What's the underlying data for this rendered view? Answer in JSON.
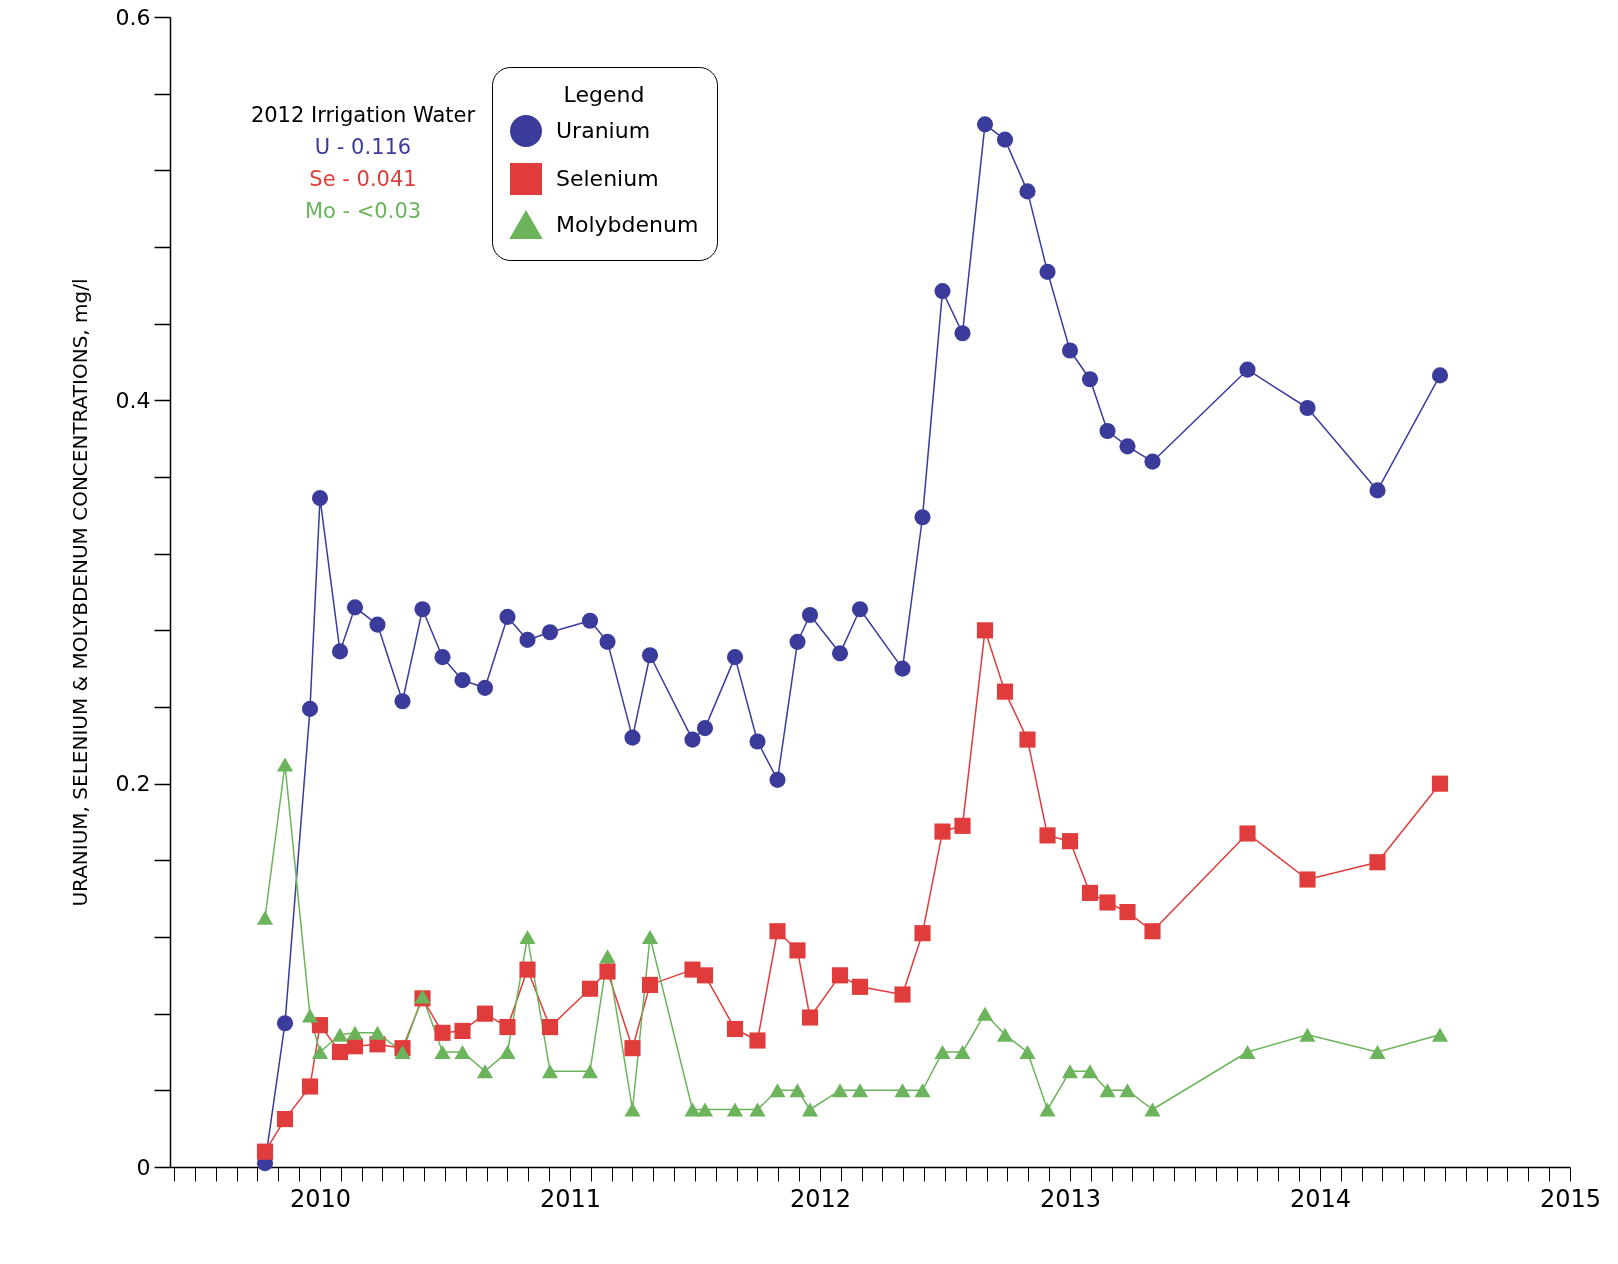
{
  "chart_data": {
    "type": "line",
    "ylabel": "URANIUM, SELENIUM & MOLYBDENUM CONCENTRATIONS, mg/l",
    "legend_title": "Legend",
    "legend": "top",
    "grid": false,
    "annotations": [
      "2012 Irrigation Water",
      "U - 0.116",
      "Se - 0.041",
      "Mo - <0.03"
    ],
    "x": [
      2009.78,
      2009.86,
      2009.96,
      2010.0,
      2010.08,
      2010.14,
      2010.23,
      2010.33,
      2010.41,
      2010.49,
      2010.57,
      2010.66,
      2010.75,
      2010.83,
      2010.92,
      2011.08,
      2011.15,
      2011.25,
      2011.32,
      2011.49,
      2011.54,
      2011.66,
      2011.75,
      2011.83,
      2011.91,
      2011.96,
      2012.08,
      2012.16,
      2012.33,
      2012.41,
      2012.49,
      2012.57,
      2012.66,
      2012.74,
      2012.83,
      2012.91,
      2013.0,
      2013.08,
      2013.15,
      2013.23,
      2013.33,
      2013.71,
      2013.95,
      2014.23,
      2014.48
    ],
    "series": [
      {
        "name": "Uranium",
        "color": "#3b3b9c",
        "marker": "circle",
        "values": [
          0.002,
          0.075,
          0.239,
          0.349,
          0.269,
          0.292,
          0.283,
          0.243,
          0.291,
          0.266,
          0.254,
          0.25,
          0.287,
          0.275,
          0.279,
          0.285,
          0.274,
          0.224,
          0.267,
          0.223,
          0.229,
          0.266,
          0.222,
          0.202,
          0.274,
          0.288,
          0.268,
          0.291,
          0.26,
          0.339,
          0.457,
          0.435,
          0.544,
          0.536,
          0.509,
          0.467,
          0.426,
          0.411,
          0.384,
          0.376,
          0.368,
          0.416,
          0.396,
          0.353,
          0.413
        ]
      },
      {
        "name": "Selenium",
        "color": "#e03c3c",
        "marker": "square",
        "values": [
          0.008,
          0.025,
          0.042,
          0.074,
          0.06,
          0.063,
          0.064,
          0.062,
          0.088,
          0.07,
          0.071,
          0.08,
          0.073,
          0.103,
          0.073,
          0.093,
          0.102,
          0.062,
          0.095,
          0.103,
          0.1,
          0.072,
          0.066,
          0.123,
          0.113,
          0.078,
          0.1,
          0.094,
          0.09,
          0.122,
          0.175,
          0.178,
          0.28,
          0.248,
          0.223,
          0.173,
          0.17,
          0.143,
          0.138,
          0.133,
          0.123,
          0.174,
          0.15,
          0.159,
          0.2
        ]
      },
      {
        "name": "Molybdenum",
        "color": "#6cb45c",
        "marker": "triangle",
        "values": [
          0.13,
          0.21,
          0.079,
          0.06,
          0.069,
          0.07,
          0.07,
          0.06,
          0.089,
          0.06,
          0.06,
          0.05,
          0.06,
          0.12,
          0.05,
          0.05,
          0.11,
          0.03,
          0.12,
          0.03,
          0.03,
          0.03,
          0.03,
          0.04,
          0.04,
          0.03,
          0.04,
          0.04,
          0.04,
          0.04,
          0.06,
          0.06,
          0.08,
          0.069,
          0.06,
          0.03,
          0.05,
          0.05,
          0.04,
          0.04,
          0.03,
          0.06,
          0.069,
          0.06,
          0.069
        ]
      }
    ],
    "xlim": [
      2009.4,
      2015
    ],
    "xticks": [
      {
        "value": 2009.417,
        "label": null
      },
      {
        "value": 2009.5,
        "label": null
      },
      {
        "value": 2009.583,
        "label": null
      },
      {
        "value": 2009.667,
        "label": null
      },
      {
        "value": 2009.75,
        "label": null
      },
      {
        "value": 2009.833,
        "label": null
      },
      {
        "value": 2009.917,
        "label": null
      },
      2010,
      {
        "value": 2010.083,
        "label": null
      },
      {
        "value": 2010.167,
        "label": null
      },
      {
        "value": 2010.25,
        "label": null
      },
      {
        "value": 2010.333,
        "label": null
      },
      {
        "value": 2010.417,
        "label": null
      },
      {
        "value": 2010.5,
        "label": null
      },
      {
        "value": 2010.583,
        "label": null
      },
      {
        "value": 2010.667,
        "label": null
      },
      {
        "value": 2010.75,
        "label": null
      },
      {
        "value": 2010.833,
        "label": null
      },
      {
        "value": 2010.917,
        "label": null
      },
      2011,
      {
        "value": 2011.083,
        "label": null
      },
      {
        "value": 2011.167,
        "label": null
      },
      {
        "value": 2011.25,
        "label": null
      },
      {
        "value": 2011.333,
        "label": null
      },
      {
        "value": 2011.417,
        "label": null
      },
      {
        "value": 2011.5,
        "label": null
      },
      {
        "value": 2011.583,
        "label": null
      },
      {
        "value": 2011.667,
        "label": null
      },
      {
        "value": 2011.75,
        "label": null
      },
      {
        "value": 2011.833,
        "label": null
      },
      {
        "value": 2011.917,
        "label": null
      },
      2012,
      {
        "value": 2012.083,
        "label": null
      },
      {
        "value": 2012.167,
        "label": null
      },
      {
        "value": 2012.25,
        "label": null
      },
      {
        "value": 2012.333,
        "label": null
      },
      {
        "value": 2012.417,
        "label": null
      },
      {
        "value": 2012.5,
        "label": null
      },
      {
        "value": 2012.583,
        "label": null
      },
      {
        "value": 2012.667,
        "label": null
      },
      {
        "value": 2012.75,
        "label": null
      },
      {
        "value": 2012.833,
        "label": null
      },
      {
        "value": 2012.917,
        "label": null
      },
      2013,
      {
        "value": 2013.083,
        "label": null
      },
      {
        "value": 2013.167,
        "label": null
      },
      {
        "value": 2013.25,
        "label": null
      },
      {
        "value": 2013.333,
        "label": null
      },
      {
        "value": 2013.417,
        "label": null
      },
      {
        "value": 2013.5,
        "label": null
      },
      {
        "value": 2013.583,
        "label": null
      },
      {
        "value": 2013.667,
        "label": null
      },
      {
        "value": 2013.75,
        "label": null
      },
      {
        "value": 2013.833,
        "label": null
      },
      {
        "value": 2013.917,
        "label": null
      },
      2014,
      {
        "value": 2014.083,
        "label": null
      },
      {
        "value": 2014.167,
        "label": null
      },
      {
        "value": 2014.25,
        "label": null
      },
      {
        "value": 2014.333,
        "label": null
      },
      {
        "value": 2014.417,
        "label": null
      },
      {
        "value": 2014.5,
        "label": null
      },
      {
        "value": 2014.583,
        "label": null
      },
      {
        "value": 2014.667,
        "label": null
      },
      {
        "value": 2014.75,
        "label": null
      },
      {
        "value": 2014.833,
        "label": null
      },
      {
        "value": 2014.917,
        "label": null
      },
      2015
    ],
    "ylim": [
      0,
      0.6
    ],
    "yticks": [
      0,
      {
        "value": 0.04,
        "label": null
      },
      {
        "value": 0.08,
        "label": null
      },
      {
        "value": 0.12,
        "label": null
      },
      {
        "value": 0.16,
        "label": null
      },
      0.2,
      {
        "value": 0.24,
        "label": null
      },
      {
        "value": 0.28,
        "label": null
      },
      {
        "value": 0.32,
        "label": null
      },
      {
        "value": 0.36,
        "label": null
      },
      0.4,
      {
        "value": 0.44,
        "label": null
      },
      {
        "value": 0.48,
        "label": null
      },
      {
        "value": 0.52,
        "label": null
      },
      {
        "value": 0.56,
        "label": null
      },
      0.6
    ]
  }
}
